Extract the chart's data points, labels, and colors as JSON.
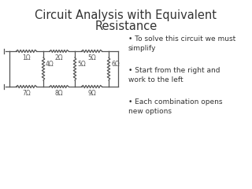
{
  "title_line1": "Circuit Analysis with Equivalent",
  "title_line2": "Resistance",
  "title_fontsize": 10.5,
  "title_color": "#333333",
  "bg_color": "#ffffff",
  "bullet_points": [
    "To solve this circuit we must\nsimplify",
    "Start from the right and\nwork to the left",
    "Each combination opens\nnew options"
  ],
  "bullet_fontsize": 6.5,
  "line_color": "#555555",
  "line_width": 0.9
}
